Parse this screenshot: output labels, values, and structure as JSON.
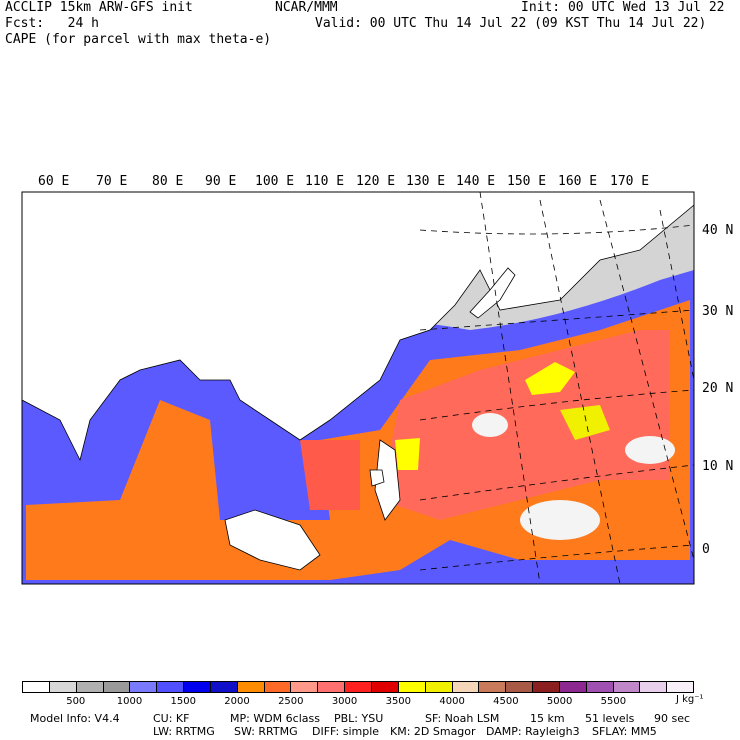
{
  "header": {
    "left_line1": "ACCLIP 15km ARW-GFS init",
    "center_line1": "NCAR/MMM",
    "right_line1": "Init: 00 UTC Wed 13 Jul 22",
    "left_line2": "Fcst:   24 h",
    "right_line2": "Valid: 00 UTC Thu 14 Jul 22 (09 KST Thu 14 Jul 22)",
    "line3": "CAPE (for parcel with max theta-e)"
  },
  "map": {
    "lon_labels": [
      "60 E",
      "70 E",
      "80 E",
      "90 E",
      "100 E",
      "110 E",
      "120 E",
      "130 E",
      "140 E",
      "150 E",
      "160 E",
      "170 E"
    ],
    "lat_labels": [
      "40 N",
      "30 N",
      "20 N",
      "10 N",
      "0"
    ],
    "land_color": "#ffffff",
    "coast_color": "#000000"
  },
  "legend": {
    "colors": [
      "#ffffff",
      "#d8d8d8",
      "#b0b0b0",
      "#9a9a9a",
      "#7a7aff",
      "#5050ff",
      "#0000ee",
      "#1010c8",
      "#ff8c00",
      "#ff6a28",
      "#ff9a8a",
      "#ff7070",
      "#ff2020",
      "#e00000",
      "#ffff00",
      "#f0f000",
      "#f5d6b8",
      "#c87a5a",
      "#a85a46",
      "#8c2020",
      "#8c2890",
      "#a050b0",
      "#c088c8",
      "#e8d0ec",
      "#f8f0f8"
    ],
    "tick_labels": [
      "500",
      "1000",
      "1500",
      "2000",
      "2500",
      "3000",
      "3500",
      "4000",
      "4500",
      "5000",
      "5500"
    ],
    "unit": "J kg⁻¹"
  },
  "footer": {
    "model_info": "Model Info: V4.4",
    "cu": "CU: KF",
    "mp": "MP: WDM 6class",
    "pbl": "PBL: YSU",
    "sf": "SF: Noah LSM",
    "res": "15 km",
    "levels": "51 levels",
    "dt": "90 sec",
    "lw": "LW: RRTMG",
    "sw": "SW: RRTMG",
    "diff": "DIFF: simple",
    "km": "KM: 2D Smagor",
    "damp": "DAMP: Rayleigh3",
    "sflay": "SFLAY: MM5"
  }
}
